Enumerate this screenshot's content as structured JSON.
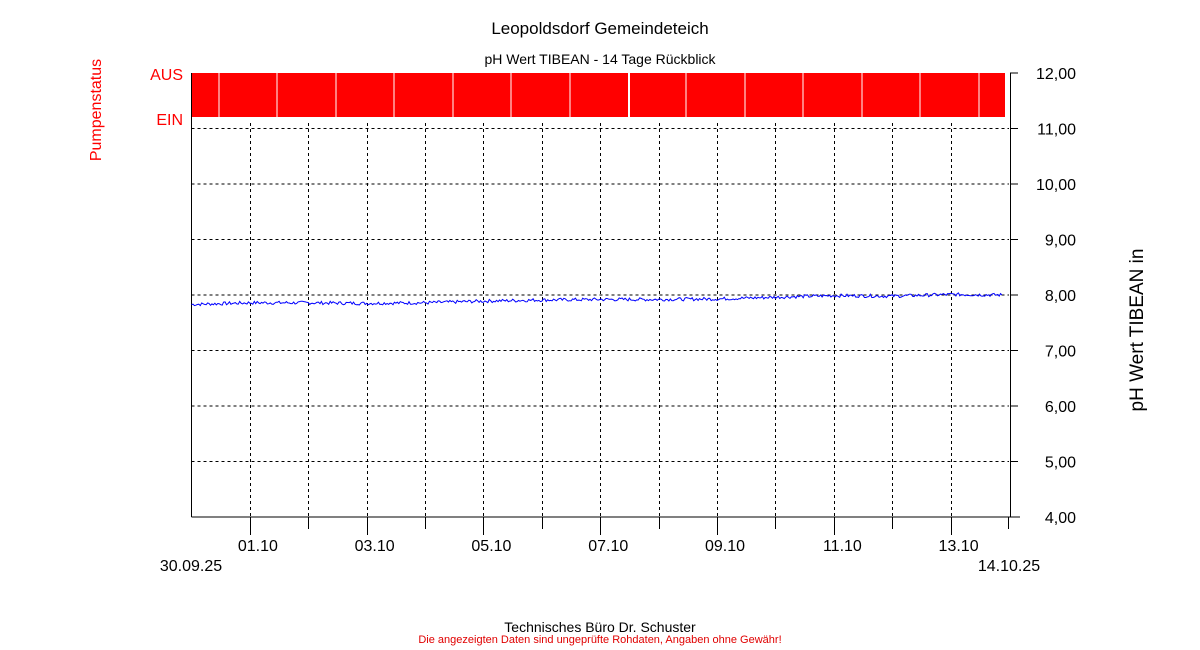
{
  "chart_data": {
    "type": "line",
    "title": "Leopoldsdorf Gemeindeteich",
    "subtitle": "pH Wert TIBEAN - 14 Tage Rückblick",
    "ylabel": "pH Wert TIBEAN in",
    "ylabel_left": "Pumpenstatus",
    "pump_labels": {
      "off": "AUS",
      "on": "EIN"
    },
    "pump_status": "AUS",
    "ylim": [
      4,
      12
    ],
    "yticks": [
      "4,00",
      "5,00",
      "6,00",
      "7,00",
      "8,00",
      "9,00",
      "10,00",
      "11,00",
      "12,00"
    ],
    "xlim_days": [
      0,
      14
    ],
    "x_start_label": "30.09.25",
    "x_end_label": "14.10.25",
    "xtick_labels": [
      {
        "day": 1,
        "label": "01.10"
      },
      {
        "day": 3,
        "label": "03.10"
      },
      {
        "day": 5,
        "label": "05.10"
      },
      {
        "day": 7,
        "label": "07.10"
      },
      {
        "day": 9,
        "label": "09.10"
      },
      {
        "day": 11,
        "label": "11.10"
      },
      {
        "day": 13,
        "label": "13.10"
      }
    ],
    "grid": true,
    "series": [
      {
        "name": "pH Wert TIBEAN",
        "color": "#0000ff",
        "x_days": [
          0,
          1,
          2,
          3,
          4,
          5,
          6,
          7,
          8,
          9,
          10,
          11,
          12,
          13,
          13.9
        ],
        "values": [
          7.83,
          7.86,
          7.86,
          7.85,
          7.86,
          7.89,
          7.91,
          7.92,
          7.92,
          7.93,
          7.96,
          7.99,
          7.98,
          8.01,
          8.0
        ]
      }
    ],
    "pump_band_color": "#ff0000"
  },
  "footer": {
    "line1": "Technisches Büro Dr. Schuster",
    "line2": "Die angezeigten Daten sind ungeprüfte Rohdaten, Angaben ohne Gewähr!"
  }
}
